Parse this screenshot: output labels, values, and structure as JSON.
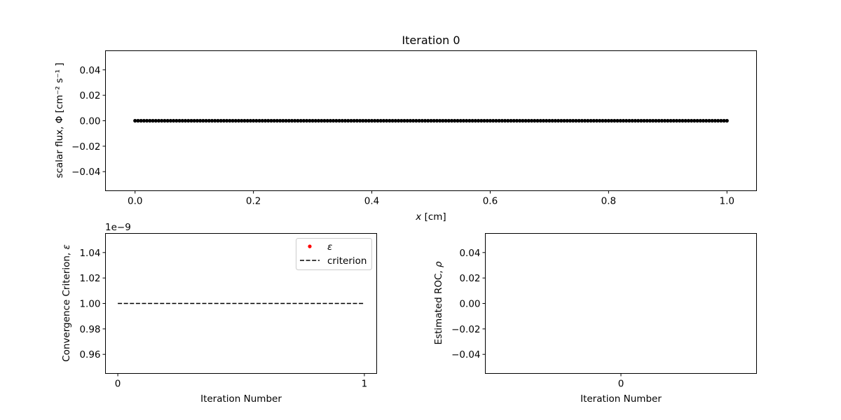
{
  "chart_data": [
    {
      "type": "scatter",
      "title": "Iteration 0",
      "xlabel_italic": "x",
      "xlabel_rest": " [cm]",
      "ylabel": "scalar flux, Φ [cm⁻² s⁻¹ ]",
      "xlim": [
        -0.05,
        1.05
      ],
      "ylim": [
        -0.055,
        0.055
      ],
      "xticks": [
        "0.0",
        "0.2",
        "0.4",
        "0.6",
        "0.8",
        "1.0"
      ],
      "xtick_values": [
        0.0,
        0.2,
        0.4,
        0.6,
        0.8,
        1.0
      ],
      "yticks": [
        "−0.04",
        "−0.02",
        "0.00",
        "0.02",
        "0.04"
      ],
      "ytick_values": [
        -0.04,
        -0.02,
        0.0,
        0.02,
        0.04
      ],
      "series": [
        {
          "x_start": 0.0,
          "x_end": 1.0,
          "n_points": 201,
          "y": 0.0,
          "color": "#000000"
        }
      ]
    },
    {
      "type": "line",
      "xlabel": "Iteration Number",
      "ylabel_text": "Convergence Criterion, ",
      "ylabel_symbol": "ε",
      "offset_text": "1e−9",
      "xlim": [
        -0.05,
        1.05
      ],
      "ylim": [
        0.945,
        1.055
      ],
      "xticks": [
        "0",
        "1"
      ],
      "xtick_values": [
        0,
        1
      ],
      "yticks": [
        "0.96",
        "0.98",
        "1.00",
        "1.02",
        "1.04"
      ],
      "ytick_values": [
        0.96,
        0.98,
        1.0,
        1.02,
        1.04
      ],
      "legend": {
        "position": "upper right",
        "entries": [
          {
            "label": "ε",
            "marker": "dot",
            "color": "#ff0000"
          },
          {
            "label": "criterion",
            "marker": "dashed",
            "color": "#000000"
          }
        ]
      },
      "series": [
        {
          "name": "ε",
          "x": [],
          "y": [],
          "color": "#ff0000"
        },
        {
          "name": "criterion",
          "x": [
            0,
            1
          ],
          "y": [
            1.0,
            1.0
          ],
          "color": "#000000",
          "style": "dashed"
        }
      ]
    },
    {
      "type": "line",
      "xlabel": "Iteration Number",
      "ylabel_text": "Estimated ROC, ",
      "ylabel_symbol": "ρ",
      "xlim": [
        -0.055,
        0.055
      ],
      "ylim": [
        -0.055,
        0.055
      ],
      "xticks": [
        "0"
      ],
      "xtick_values": [
        0
      ],
      "yticks": [
        "−0.04",
        "−0.02",
        "0.00",
        "0.02",
        "0.04"
      ],
      "ytick_values": [
        -0.04,
        -0.02,
        0.0,
        0.02,
        0.04
      ],
      "series": []
    }
  ]
}
